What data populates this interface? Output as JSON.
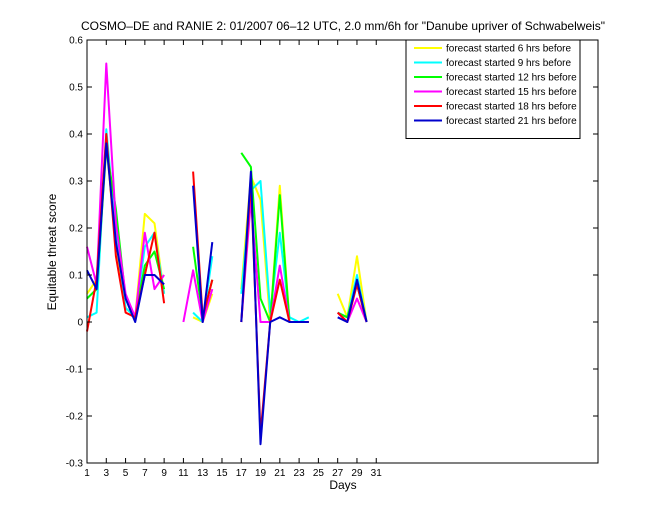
{
  "chart_data": {
    "type": "line",
    "title": "COSMO–DE and RANIE 2: 01/2007 06–12 UTC, 2.0 mm/6h for \"Danube upriver of Schwabelweis\"",
    "xlabel": "Days",
    "ylabel": "Equitable threat score",
    "xlim": [
      1,
      54
    ],
    "ylim": [
      -0.3,
      0.6
    ],
    "xticks": [
      "1",
      "3",
      "5",
      "7",
      "9",
      "11",
      "13",
      "15",
      "17",
      "19",
      "21",
      "23",
      "25",
      "27",
      "29",
      "31"
    ],
    "yticks": [
      "-0.3",
      "-0.2",
      "-0.1",
      "0",
      "0.1",
      "0.2",
      "0.3",
      "0.4",
      "0.5",
      "0.6"
    ],
    "grid": false,
    "legend_position": "top-right",
    "series": [
      {
        "name": "forecast started 6 hrs before",
        "color": "#ffff00",
        "x": [
          1,
          2,
          3,
          4,
          5,
          6,
          7,
          8,
          9,
          null,
          12,
          13,
          14,
          null,
          17,
          18,
          19,
          20,
          21,
          22,
          23,
          24,
          null,
          27,
          28,
          29,
          30
        ],
        "y": [
          0.06,
          0.09,
          0.38,
          0.16,
          0.03,
          0.01,
          0.23,
          0.21,
          0.06,
          null,
          0.01,
          0.0,
          0.06,
          null,
          0.07,
          0.31,
          0.26,
          0.0,
          0.29,
          0.0,
          0.0,
          0.0,
          null,
          0.06,
          0.01,
          0.14,
          0.0
        ]
      },
      {
        "name": "forecast started 9 hrs before",
        "color": "#00ffff",
        "x": [
          1,
          2,
          3,
          4,
          5,
          6,
          7,
          8,
          9,
          null,
          12,
          13,
          14,
          null,
          17,
          18,
          19,
          20,
          21,
          22,
          23,
          24,
          null,
          27,
          28,
          29,
          30
        ],
        "y": [
          0.01,
          0.02,
          0.41,
          0.19,
          0.03,
          0.01,
          0.16,
          0.19,
          0.06,
          null,
          0.02,
          0.0,
          0.14,
          null,
          0.06,
          0.28,
          0.3,
          0.02,
          0.19,
          0.01,
          0.0,
          0.01,
          null,
          0.02,
          0.01,
          0.1,
          0.0
        ]
      },
      {
        "name": "forecast started 12 hrs before",
        "color": "#00ff00",
        "x": [
          1,
          2,
          3,
          4,
          5,
          6,
          7,
          8,
          9,
          null,
          12,
          13,
          14,
          null,
          17,
          18,
          19,
          20,
          21,
          22,
          23,
          24,
          null,
          27,
          28,
          29,
          30
        ],
        "y": [
          0.05,
          0.07,
          0.37,
          0.24,
          0.05,
          0.01,
          0.12,
          0.15,
          0.07,
          null,
          0.16,
          0.01,
          0.09,
          null,
          0.36,
          0.33,
          0.05,
          0.0,
          0.27,
          0.0,
          0.0,
          0.0,
          null,
          0.02,
          0.01,
          0.08,
          0.0
        ]
      },
      {
        "name": "forecast started 15 hrs before",
        "color": "#ff00ff",
        "x": [
          1,
          2,
          3,
          4,
          5,
          6,
          7,
          8,
          9,
          null,
          11,
          12,
          13,
          14,
          null,
          17,
          18,
          19,
          20,
          21,
          22,
          23,
          24,
          null,
          27,
          28,
          29,
          30
        ],
        "y": [
          0.16,
          0.08,
          0.55,
          0.21,
          0.06,
          0.01,
          0.19,
          0.07,
          0.1,
          null,
          0.0,
          0.11,
          0.0,
          0.07,
          null,
          0.0,
          0.26,
          0.0,
          0.0,
          0.12,
          0.0,
          0.0,
          0.0,
          null,
          0.02,
          0.0,
          0.05,
          0.0
        ]
      },
      {
        "name": "forecast started 18 hrs before",
        "color": "#ff0000",
        "x": [
          1,
          2,
          3,
          4,
          5,
          6,
          7,
          8,
          9,
          null,
          12,
          13,
          14,
          null,
          17,
          18,
          19,
          20,
          21,
          22,
          23,
          24,
          null,
          27,
          28,
          29,
          30
        ],
        "y": [
          -0.02,
          0.09,
          0.4,
          0.14,
          0.02,
          0.01,
          0.1,
          0.19,
          0.04,
          null,
          0.32,
          0.01,
          0.09,
          null,
          0.0,
          0.3,
          -0.24,
          0.0,
          0.09,
          0.0,
          0.0,
          0.0,
          null,
          0.02,
          0.0,
          0.08,
          0.0
        ]
      },
      {
        "name": "forecast started 21 hrs before",
        "color": "#0000cc",
        "x": [
          1,
          2,
          3,
          4,
          5,
          6,
          7,
          8,
          9,
          null,
          12,
          13,
          14,
          null,
          17,
          18,
          19,
          20,
          21,
          22,
          23,
          24,
          null,
          27,
          28,
          29,
          30
        ],
        "y": [
          0.11,
          0.07,
          0.38,
          0.17,
          0.05,
          0.0,
          0.1,
          0.1,
          0.08,
          null,
          0.29,
          0.0,
          0.17,
          null,
          0.0,
          0.32,
          -0.26,
          0.0,
          0.01,
          0.0,
          0.0,
          0.0,
          null,
          0.01,
          0.0,
          0.09,
          0.0
        ]
      }
    ]
  }
}
